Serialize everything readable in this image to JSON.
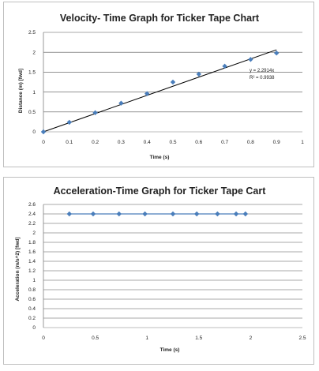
{
  "chart_data": [
    {
      "type": "scatter",
      "title": "Velocity- Time Graph for Ticker Tape Chart",
      "xlabel": "Time (s)",
      "ylabel": "Distance (m) [fwd]",
      "xlim": [
        0,
        1
      ],
      "ylim": [
        0,
        2.5
      ],
      "xticks": [
        "0",
        "0.1",
        "0.2",
        "0.3",
        "0.4",
        "0.5",
        "0.6",
        "0.7",
        "0.8",
        "0.9",
        "1"
      ],
      "yticks": [
        "0",
        "0.5",
        "1",
        "1.5",
        "2",
        "2.5"
      ],
      "grid": true,
      "marker_color": "#4a7ebb",
      "x": [
        0,
        0.1,
        0.2,
        0.3,
        0.4,
        0.5,
        0.6,
        0.7,
        0.8,
        0.9
      ],
      "y": [
        0,
        0.24,
        0.48,
        0.72,
        0.96,
        1.25,
        1.45,
        1.65,
        1.82,
        1.98
      ],
      "trendline": {
        "slope": 2.2914,
        "equation": "y = 2.2914x",
        "r2": "R² = 0.9938"
      }
    },
    {
      "type": "scatter",
      "title": "Acceleration-Time Graph for Ticker Tape Cart",
      "xlabel": "Time (s)",
      "ylabel": "Acceleration (m/s^2) [fwd]",
      "xlim": [
        0,
        2.5
      ],
      "ylim": [
        0,
        2.6
      ],
      "xticks": [
        "0",
        "0.5",
        "1",
        "1.5",
        "2",
        "2.5"
      ],
      "yticks": [
        "0",
        "0.2",
        "0.4",
        "0.6",
        "0.8",
        "1",
        "1.2",
        "1.4",
        "1.6",
        "1.8",
        "2",
        "2.2",
        "2.4",
        "2.6"
      ],
      "grid": true,
      "marker_color": "#4a7ebb",
      "line": true,
      "x": [
        0.25,
        0.48,
        0.73,
        0.98,
        1.25,
        1.48,
        1.68,
        1.86,
        1.95
      ],
      "y": [
        2.4,
        2.4,
        2.4,
        2.4,
        2.4,
        2.4,
        2.4,
        2.4,
        2.4
      ]
    }
  ]
}
